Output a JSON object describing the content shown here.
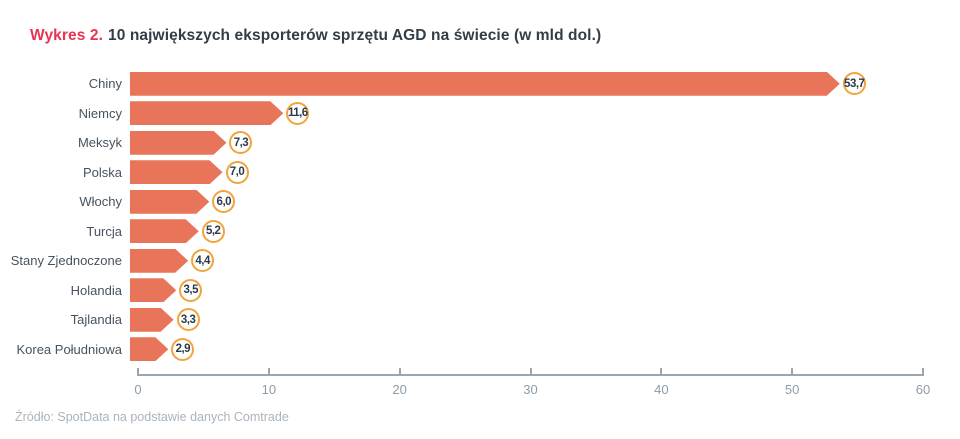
{
  "header": {
    "title_prefix": "Wykres 2.",
    "title_text": "10 największych eksporterów sprzętu AGD na świecie (w mld dol.)"
  },
  "chart_data": {
    "type": "bar",
    "orientation": "horizontal",
    "title": "Wykres 2. 10 największych eksporterów sprzętu AGD na świecie (w mld dol.)",
    "xlabel": "",
    "ylabel": "",
    "categories": [
      "Chiny",
      "Niemcy",
      "Meksyk",
      "Polska",
      "Włochy",
      "Turcja",
      "Stany Zjednoczone",
      "Holandia",
      "Tajlandia",
      "Korea Południowa"
    ],
    "values": [
      53.7,
      11.6,
      7.3,
      7.0,
      6.0,
      5.2,
      4.4,
      3.5,
      3.3,
      2.9
    ],
    "value_labels": [
      "53,7",
      "11,6",
      "7,3",
      "7,0",
      "6,0",
      "5,2",
      "4,4",
      "3,5",
      "3,3",
      "2,9"
    ],
    "xlim": [
      0,
      60
    ],
    "xticks": [
      0,
      10,
      20,
      30,
      40,
      50,
      60
    ],
    "grid": false,
    "legend": false
  },
  "footer": {
    "source": "Źródło: SpotData na podstawie danych Comtrade"
  },
  "colors": {
    "bar": "#e8745a",
    "badge_border": "#f2a43b",
    "badge_text": "#2d3a4a",
    "title_accent": "#e73450",
    "title_text": "#323d47",
    "category_label": "#46535f",
    "axis": "#9aa6b0",
    "tick_label": "#8e9ca9",
    "source_text": "#a9b4bd"
  }
}
